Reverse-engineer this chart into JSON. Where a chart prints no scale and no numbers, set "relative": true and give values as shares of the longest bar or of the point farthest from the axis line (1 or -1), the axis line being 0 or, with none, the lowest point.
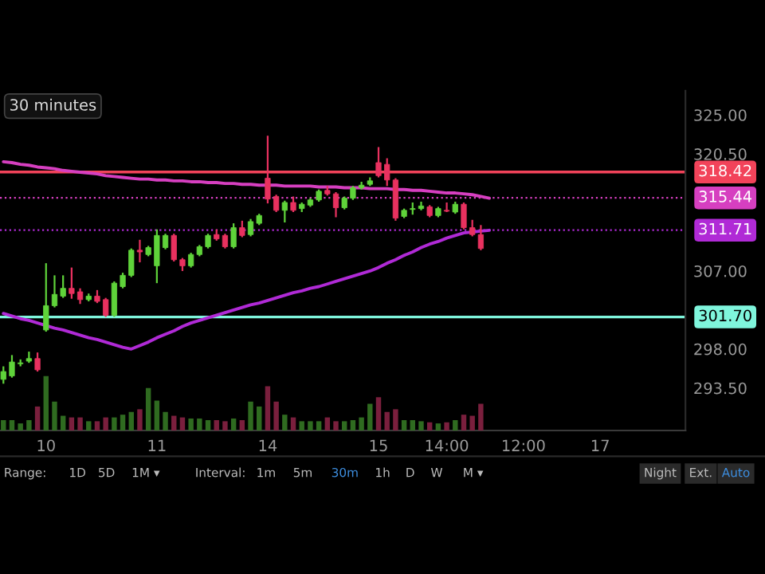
{
  "chart_data": [
    {
      "type": "candlestick",
      "categories": [
        null,
        null,
        null,
        null,
        null,
        "10",
        null,
        null,
        null,
        null,
        null,
        null,
        null,
        null,
        null,
        null,
        null,
        null,
        "11",
        null,
        null,
        null,
        null,
        null,
        null,
        null,
        null,
        null,
        null,
        null,
        null,
        "14",
        null,
        null,
        null,
        null,
        null,
        null,
        null,
        null,
        null,
        null,
        null,
        null,
        "15",
        null,
        null,
        null,
        null,
        null,
        null,
        null,
        "14:00",
        null,
        null,
        null,
        null,
        null,
        null,
        null,
        null,
        "12:00",
        null,
        null,
        null,
        null,
        null,
        null,
        null,
        null,
        "17",
        null,
        null,
        null,
        null,
        null,
        null,
        null,
        null,
        null
      ],
      "ohlc": [
        [
          294.5,
          296.0,
          294.0,
          295.4
        ],
        [
          294.9,
          297.3,
          294.7,
          296.5
        ],
        [
          296.3,
          296.8,
          296.0,
          296.4
        ],
        [
          296.6,
          297.7,
          296.4,
          296.9
        ],
        [
          296.9,
          297.6,
          295.4,
          295.6
        ],
        [
          300.2,
          307.9,
          300.0,
          303.0
        ],
        [
          303.0,
          306.5,
          302.8,
          304.3
        ],
        [
          304.1,
          306.5,
          303.9,
          305.0
        ],
        [
          305.0,
          307.4,
          303.8,
          304.4
        ],
        [
          304.6,
          305.0,
          303.2,
          303.7
        ],
        [
          303.7,
          304.4,
          303.5,
          304.1
        ],
        [
          304.1,
          304.8,
          303.3,
          303.5
        ],
        [
          303.7,
          303.9,
          301.7,
          301.9
        ],
        [
          301.9,
          305.8,
          301.7,
          305.6
        ],
        [
          305.2,
          306.8,
          305.0,
          306.5
        ],
        [
          306.5,
          309.6,
          306.3,
          309.4
        ],
        [
          309.4,
          310.6,
          308.0,
          309.2
        ],
        [
          308.9,
          309.9,
          308.7,
          309.7
        ],
        [
          307.6,
          311.8,
          305.6,
          311.1
        ],
        [
          309.7,
          311.3,
          309.5,
          311.1
        ],
        [
          311.1,
          311.3,
          308.1,
          308.3
        ],
        [
          308.3,
          308.5,
          307.0,
          307.6
        ],
        [
          307.6,
          309.1,
          307.4,
          308.9
        ],
        [
          308.9,
          310.0,
          308.7,
          309.8
        ],
        [
          309.8,
          311.3,
          309.6,
          311.1
        ],
        [
          311.2,
          311.8,
          310.5,
          310.7
        ],
        [
          311.1,
          311.3,
          309.6,
          309.8
        ],
        [
          309.8,
          312.5,
          309.6,
          312.0
        ],
        [
          312.0,
          312.8,
          310.9,
          311.1
        ],
        [
          311.2,
          313.0,
          311.0,
          312.7
        ],
        [
          312.5,
          313.6,
          312.3,
          313.4
        ],
        [
          317.7,
          322.6,
          314.8,
          315.3
        ],
        [
          315.6,
          315.8,
          313.8,
          314.0
        ],
        [
          314.0,
          315.1,
          312.6,
          314.9
        ],
        [
          314.9,
          315.6,
          313.8,
          314.0
        ],
        [
          314.2,
          314.9,
          313.8,
          314.7
        ],
        [
          314.6,
          315.4,
          314.4,
          315.2
        ],
        [
          315.2,
          316.4,
          315.0,
          316.2
        ],
        [
          316.3,
          316.8,
          315.7,
          315.9
        ],
        [
          315.9,
          316.1,
          313.2,
          314.3
        ],
        [
          314.3,
          315.6,
          314.1,
          315.4
        ],
        [
          315.4,
          316.8,
          315.2,
          316.6
        ],
        [
          316.6,
          317.3,
          316.4,
          316.9
        ],
        [
          317.0,
          317.8,
          316.8,
          317.4
        ],
        [
          319.5,
          321.3,
          317.8,
          318.0
        ],
        [
          319.3,
          320.0,
          316.8,
          317.5
        ],
        [
          317.5,
          317.7,
          312.8,
          313.1
        ],
        [
          313.3,
          314.2,
          313.1,
          314.0
        ],
        [
          314.1,
          314.9,
          313.5,
          314.2
        ],
        [
          314.2,
          315.0,
          314.0,
          314.5
        ],
        [
          314.4,
          314.6,
          313.2,
          313.4
        ],
        [
          313.4,
          314.4,
          313.2,
          314.2
        ],
        [
          314.0,
          314.9,
          313.8,
          313.9
        ],
        [
          313.8,
          315.0,
          313.6,
          314.7
        ],
        [
          314.7,
          314.9,
          311.8,
          312.0
        ],
        [
          312.0,
          312.9,
          311.0,
          311.2
        ],
        [
          311.2,
          312.3,
          309.4,
          309.6
        ],
        null,
        null,
        null,
        null,
        null,
        null,
        null,
        null,
        null,
        null,
        null,
        null,
        null,
        null,
        null,
        null,
        null,
        null,
        null,
        null,
        null,
        null,
        null
      ],
      "colors": [
        "#5fd33a",
        "#5fd33a",
        "#5fd33a",
        "#5fd33a",
        "#e8315f",
        "#5fd33a",
        "#5fd33a",
        "#5fd33a",
        "#e8315f",
        "#e8315f",
        "#5fd33a",
        "#e8315f",
        "#e8315f",
        "#5fd33a",
        "#5fd33a",
        "#5fd33a",
        "#e8315f",
        "#5fd33a",
        "#5fd33a",
        "#5fd33a",
        "#e8315f",
        "#e8315f",
        "#5fd33a",
        "#5fd33a",
        "#5fd33a",
        "#e8315f",
        "#e8315f",
        "#5fd33a",
        "#e8315f",
        "#5fd33a",
        "#5fd33a",
        "#e8315f",
        "#e8315f",
        "#5fd33a",
        "#e8315f",
        "#5fd33a",
        "#5fd33a",
        "#5fd33a",
        "#e8315f",
        "#e8315f",
        "#5fd33a",
        "#5fd33a",
        "#5fd33a",
        "#5fd33a",
        "#e8315f",
        "#e8315f",
        "#e8315f",
        "#5fd33a",
        "#5fd33a",
        "#5fd33a",
        "#e8315f",
        "#5fd33a",
        "#e8315f",
        "#5fd33a",
        "#e8315f",
        "#e8315f",
        "#e8315f",
        null,
        null,
        null,
        null,
        null,
        null,
        null,
        null,
        null,
        null,
        null,
        null,
        null,
        null,
        null,
        null,
        null,
        null,
        null,
        null,
        null,
        null,
        null
      ],
      "series": [
        {
          "type": "line",
          "color": "#d63fc0",
          "values": [
            319.6,
            319.5,
            319.3,
            319.2,
            319.0,
            318.9,
            318.8,
            318.6,
            318.5,
            318.4,
            318.3,
            318.2,
            318.0,
            317.9,
            317.8,
            317.7,
            317.6,
            317.6,
            317.5,
            317.5,
            317.4,
            317.4,
            317.3,
            317.3,
            317.2,
            317.2,
            317.1,
            317.1,
            317.0,
            317.0,
            316.9,
            316.9,
            316.9,
            316.8,
            316.8,
            316.8,
            316.8,
            316.7,
            316.7,
            316.7,
            316.6,
            316.6,
            316.6,
            316.5,
            316.5,
            316.5,
            316.4,
            316.4,
            316.3,
            316.3,
            316.2,
            316.1,
            316.0,
            316.0,
            315.9,
            315.8,
            315.6,
            315.4,
            null,
            null,
            null,
            null,
            null,
            null,
            null,
            null,
            null,
            null,
            null,
            null,
            null,
            null,
            null,
            null,
            null,
            null,
            null,
            null,
            null,
            null
          ]
        },
        {
          "type": "line",
          "color": "#b02ad6",
          "values": [
            302.1,
            301.8,
            301.5,
            301.3,
            301.0,
            300.7,
            300.4,
            300.2,
            299.9,
            299.6,
            299.3,
            299.1,
            298.8,
            298.5,
            298.2,
            298.0,
            298.4,
            298.8,
            299.3,
            299.7,
            300.1,
            300.6,
            301.0,
            301.3,
            301.6,
            301.9,
            302.2,
            302.5,
            302.8,
            303.1,
            303.3,
            303.6,
            303.9,
            304.2,
            304.5,
            304.7,
            305.0,
            305.2,
            305.5,
            305.8,
            306.1,
            306.4,
            306.7,
            307.0,
            307.4,
            307.9,
            308.3,
            308.8,
            309.2,
            309.7,
            310.1,
            310.4,
            310.8,
            311.1,
            311.4,
            311.5,
            311.6,
            311.7,
            null,
            null,
            null,
            null,
            null,
            null,
            null,
            null,
            null,
            null,
            null,
            null,
            null,
            null,
            null,
            null,
            null,
            null,
            null,
            null,
            null,
            null
          ]
        }
      ],
      "ylim": [
        288.6,
        327.8
      ],
      "yticks": [
        {
          "value": 325,
          "label": "325.00"
        },
        {
          "value": 320.5,
          "label": "320.50"
        },
        {
          "value": 307,
          "label": "307.00"
        },
        {
          "value": 298,
          "label": "298.00"
        },
        {
          "value": 293.5,
          "label": "293.50"
        }
      ],
      "ref_lines": [
        {
          "axis": "y",
          "value": 318.42,
          "label": "318.42",
          "color": "#f2435a",
          "line_style": "solid"
        },
        {
          "axis": "y",
          "value": 315.44,
          "label": "315.44",
          "color": "#d63fc0",
          "line_style": "dotted"
        },
        {
          "axis": "y",
          "value": 311.71,
          "label": "311.71",
          "color": "#b02ad6",
          "line_style": "dotted"
        },
        {
          "axis": "y",
          "value": 301.7,
          "label": "301.70",
          "color": "#7ff5dc",
          "line_style": "solid"
        }
      ],
      "annotations": [
        "30 minutes",
        "Range:",
        "1D",
        "5D",
        "1M ▾",
        "Interval:",
        "1m",
        "5m",
        "30m",
        "1h",
        "D",
        "W",
        "M ▾",
        "Night",
        "Ext.",
        "Auto"
      ],
      "grid": false,
      "legend": false
    },
    {
      "type": "bar",
      "relative": true,
      "categories": [
        null,
        null,
        null,
        null,
        null,
        null,
        null,
        null,
        null,
        null,
        null,
        null,
        null,
        null,
        null,
        null,
        null,
        null,
        null,
        null,
        null,
        null,
        null,
        null,
        null,
        null,
        null,
        null,
        null,
        null,
        null,
        null,
        null,
        null,
        null,
        null,
        null,
        null,
        null,
        null,
        null,
        null,
        null,
        null,
        null,
        null,
        null,
        null,
        null,
        null,
        null,
        null,
        null,
        null,
        null,
        null,
        null,
        null,
        null,
        null,
        null,
        null,
        null,
        null,
        null,
        null,
        null,
        null,
        null,
        null,
        null,
        null,
        null,
        null,
        null,
        null,
        null,
        null,
        null,
        null
      ],
      "values": [
        0.19,
        0.19,
        0.13,
        0.19,
        0.44,
        1,
        0.53,
        0.27,
        0.24,
        0.24,
        0.17,
        0.17,
        0.24,
        0.24,
        0.29,
        0.34,
        0.39,
        0.78,
        0.55,
        0.34,
        0.27,
        0.24,
        0.22,
        0.22,
        0.19,
        0.19,
        0.17,
        0.22,
        0.19,
        0.53,
        0.44,
        0.81,
        0.53,
        0.29,
        0.24,
        0.17,
        0.17,
        0.17,
        0.24,
        0.17,
        0.17,
        0.19,
        0.24,
        0.49,
        0.61,
        0.34,
        0.39,
        0.19,
        0.19,
        0.17,
        0.15,
        0.13,
        0.15,
        0.19,
        0.29,
        0.27,
        0.49,
        null,
        null,
        null,
        null,
        null,
        null,
        null,
        null,
        null,
        null,
        null,
        null,
        null,
        null,
        null,
        null,
        null,
        null,
        null,
        null,
        null,
        null,
        null
      ],
      "colors": [
        "#2f6b20",
        "#2f6b20",
        "#2f6b20",
        "#2f6b20",
        "#7a1f3d",
        "#2f6b20",
        "#2f6b20",
        "#2f6b20",
        "#7a1f3d",
        "#7a1f3d",
        "#2f6b20",
        "#7a1f3d",
        "#7a1f3d",
        "#2f6b20",
        "#2f6b20",
        "#2f6b20",
        "#7a1f3d",
        "#2f6b20",
        "#2f6b20",
        "#2f6b20",
        "#7a1f3d",
        "#7a1f3d",
        "#2f6b20",
        "#2f6b20",
        "#2f6b20",
        "#7a1f3d",
        "#7a1f3d",
        "#2f6b20",
        "#7a1f3d",
        "#2f6b20",
        "#2f6b20",
        "#7a1f3d",
        "#7a1f3d",
        "#2f6b20",
        "#7a1f3d",
        "#2f6b20",
        "#2f6b20",
        "#2f6b20",
        "#7a1f3d",
        "#7a1f3d",
        "#2f6b20",
        "#2f6b20",
        "#2f6b20",
        "#2f6b20",
        "#7a1f3d",
        "#7a1f3d",
        "#7a1f3d",
        "#2f6b20",
        "#2f6b20",
        "#2f6b20",
        "#7a1f3d",
        "#2f6b20",
        "#7a1f3d",
        "#2f6b20",
        "#7a1f3d",
        "#7a1f3d",
        "#7a1f3d",
        null,
        null,
        null,
        null,
        null,
        null,
        null,
        null,
        null,
        null,
        null,
        null,
        null,
        null,
        null,
        null,
        null,
        null,
        null,
        null,
        null,
        null,
        null
      ],
      "grid": false,
      "legend": false
    }
  ]
}
